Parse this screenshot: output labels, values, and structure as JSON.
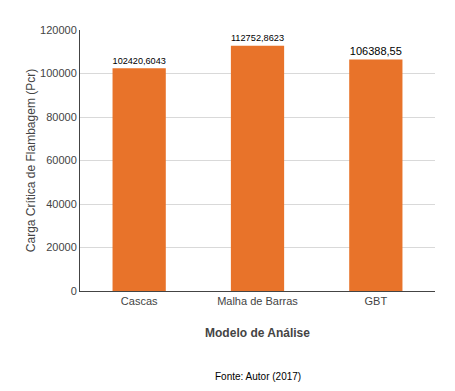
{
  "chart_data": {
    "type": "bar",
    "categories": [
      "Cascas",
      "Malha de Barras",
      "GBT"
    ],
    "values": [
      102420.6043,
      112752.8623,
      106388.55
    ],
    "value_labels": [
      "102420,6043",
      "112752,8623",
      "106388,55"
    ],
    "data_labels": true,
    "color": "#E8732A",
    "xlabel": "Modelo de Análise",
    "ylabel": "Carga Crítica de Flambagem (Pcr)",
    "ylim": [
      0,
      120000
    ],
    "yticks": [
      0,
      20000,
      40000,
      60000,
      80000,
      100000,
      120000
    ],
    "grid": true,
    "caption": "Fonte: Autor (2017)"
  }
}
